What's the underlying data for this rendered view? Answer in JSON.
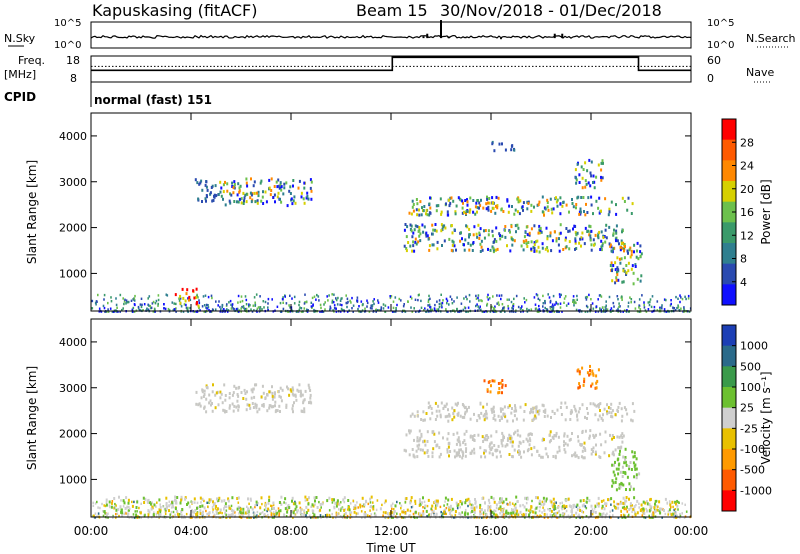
{
  "header": {
    "station": "Kapuskasing (fitACF)",
    "beam": "Beam 15",
    "date_range": "30/Nov/2018 - 01/Dec/2018"
  },
  "nsky_panel": {
    "left_label": "N.Sky",
    "right_label": "N.Search",
    "left_ticks": [
      "10^5",
      "10^0"
    ],
    "right_ticks": [
      "10^5",
      "10^0"
    ],
    "spikes": [
      {
        "t": 14.0,
        "v": 0.95
      },
      {
        "t": 13.3,
        "v": 0.35
      },
      {
        "t": 13.45,
        "v": 0.45
      },
      {
        "t": 14.3,
        "v": 0.35
      },
      {
        "t": 18.55,
        "v": 0.45
      },
      {
        "t": 18.85,
        "v": 0.45
      },
      {
        "t": 15.0,
        "v": 0.3
      },
      {
        "t": 16.4,
        "v": 0.25
      }
    ]
  },
  "freq_panel": {
    "left_label_1": "Freq.",
    "left_label_2": "[MHz]",
    "right_label": "Nave",
    "left_ticks": [
      "18",
      "8"
    ],
    "right_ticks": [
      "60",
      "0"
    ],
    "nave_steps": [
      {
        "t0": 0,
        "t1": 12.05,
        "v": 0.45
      },
      {
        "t0": 12.05,
        "t1": 21.9,
        "v": 0.95
      },
      {
        "t0": 21.9,
        "t1": 24,
        "v": 0.45
      }
    ],
    "freq_steps": [
      {
        "t0": 0,
        "t1": 10,
        "v": 0.22
      },
      {
        "t0": 10,
        "t1": 12.05,
        "v": 0.16
      },
      {
        "t0": 12.05,
        "t1": 21.9,
        "v": 0.76
      },
      {
        "t0": 21.9,
        "t1": 24,
        "v": 0.2
      }
    ]
  },
  "cpid": {
    "label": "CPID",
    "mode": "normal (fast) 151"
  },
  "chart_data": [
    {
      "type": "heatmap",
      "name": "power",
      "ylabel": "Slant Range [km]",
      "ylim": [
        180,
        4500
      ],
      "yticks": [
        "1000",
        "2000",
        "3000",
        "4000"
      ],
      "xlim": [
        0,
        24
      ],
      "colorbar_label": "Power [dB]",
      "colorbar_ticks": [
        "4",
        "8",
        "12",
        "16",
        "20",
        "24",
        "28"
      ],
      "colorbar_colors": [
        "#1010ff",
        "#2a4ab0",
        "#2f7f8f",
        "#3a9a6a",
        "#6cc04c",
        "#d6d000",
        "#ff8800",
        "#ff5a00",
        "#ff0000"
      ],
      "regions": [
        {
          "t0": 4.1,
          "t1": 5.1,
          "r0": 2600,
          "r1": 3100,
          "c": "blue"
        },
        {
          "t0": 5.1,
          "t1": 8.8,
          "r0": 2500,
          "r1": 3100,
          "c": "mix"
        },
        {
          "t0": 12.7,
          "t1": 21.7,
          "r0": 2300,
          "r1": 2700,
          "c": "mix"
        },
        {
          "t0": 12.5,
          "t1": 21.3,
          "r0": 1500,
          "r1": 2100,
          "c": "mix"
        },
        {
          "t0": 20.7,
          "t1": 22.0,
          "r0": 800,
          "r1": 1700,
          "c": "mix"
        },
        {
          "t0": 19.3,
          "t1": 20.5,
          "r0": 2900,
          "r1": 3500,
          "c": "mix"
        },
        {
          "t0": 16.0,
          "t1": 17.0,
          "r0": 3700,
          "r1": 3900,
          "c": "blue"
        },
        {
          "t0": 3.3,
          "t1": 4.3,
          "r0": 300,
          "r1": 700,
          "c": "hot"
        }
      ]
    },
    {
      "type": "heatmap",
      "name": "velocity",
      "ylabel": "Slant Range [km]",
      "xlabel": "Time UT",
      "ylim": [
        180,
        4500
      ],
      "yticks": [
        "1000",
        "2000",
        "3000",
        "4000"
      ],
      "xlim": [
        0,
        24
      ],
      "xticks": [
        "00:00",
        "04:00",
        "08:00",
        "12:00",
        "16:00",
        "20:00",
        "00:00"
      ],
      "colorbar_label": "Velocity [m s⁻¹]",
      "colorbar_ticks": [
        "1000",
        "500",
        "100",
        "25",
        "-25",
        "-100",
        "-500",
        "-1000"
      ],
      "colorbar_colors": [
        "#1c3fb5",
        "#2a6a8a",
        "#3a9a4a",
        "#6cc030",
        "#cfcfcf",
        "#e8c000",
        "#ff9a00",
        "#ff5a00",
        "#ff0000"
      ],
      "regions": [
        {
          "t0": 4.1,
          "t1": 8.8,
          "r0": 2500,
          "r1": 3100,
          "c": "gray"
        },
        {
          "t0": 12.7,
          "t1": 21.7,
          "r0": 2300,
          "r1": 2700,
          "c": "gray"
        },
        {
          "t0": 12.5,
          "t1": 21.3,
          "r0": 1500,
          "r1": 2100,
          "c": "gray"
        },
        {
          "t0": 20.8,
          "t1": 22.0,
          "r0": 800,
          "r1": 1700,
          "c": "green"
        },
        {
          "t0": 15.6,
          "t1": 16.6,
          "r0": 2900,
          "r1": 3200,
          "c": "orange"
        },
        {
          "t0": 19.4,
          "t1": 20.3,
          "r0": 3000,
          "r1": 3500,
          "c": "orange"
        },
        {
          "t0": 0.5,
          "t1": 23.5,
          "r0": 250,
          "r1": 650,
          "c": "lowmix"
        }
      ]
    }
  ]
}
